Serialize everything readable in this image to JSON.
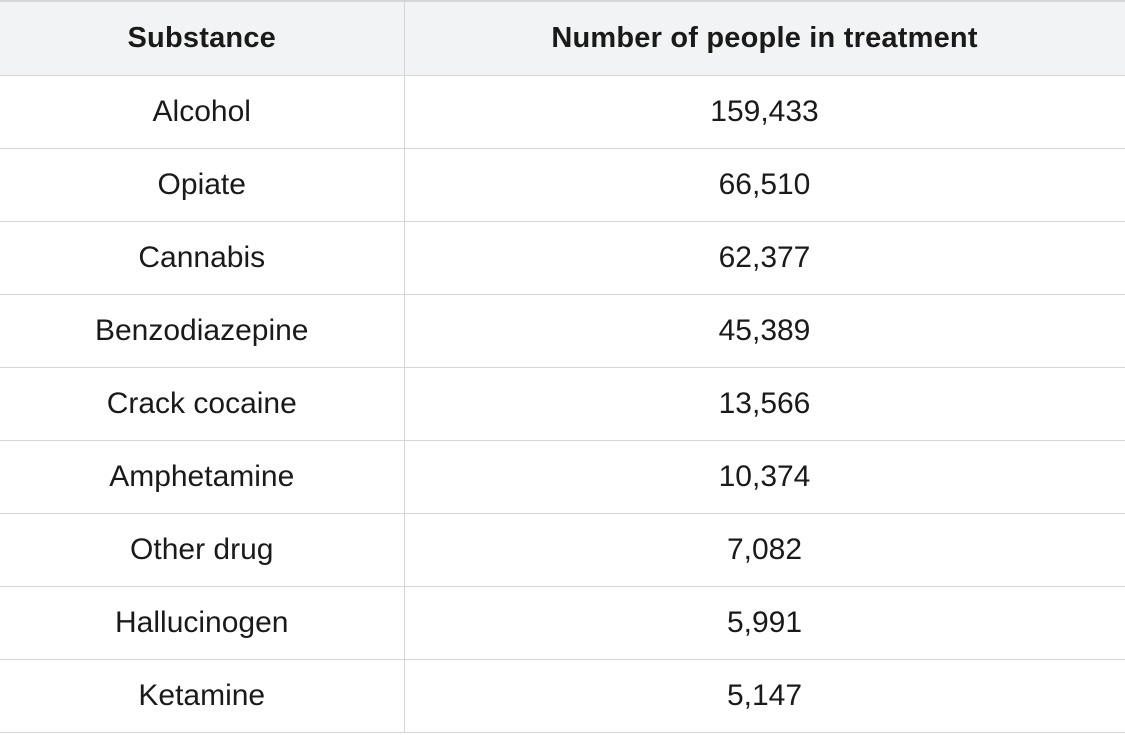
{
  "table": {
    "headers": {
      "substance": "Substance",
      "number": "Number of people in treatment"
    },
    "rows": [
      {
        "substance": "Alcohol",
        "number": "159,433"
      },
      {
        "substance": "Opiate",
        "number": "66,510"
      },
      {
        "substance": "Cannabis",
        "number": "62,377"
      },
      {
        "substance": "Benzodiazepine",
        "number": "45,389"
      },
      {
        "substance": "Crack cocaine",
        "number": "13,566"
      },
      {
        "substance": "Amphetamine",
        "number": "10,374"
      },
      {
        "substance": "Other drug",
        "number": "7,082"
      },
      {
        "substance": "Hallucinogen",
        "number": "5,991"
      },
      {
        "substance": "Ketamine",
        "number": "5,147"
      }
    ]
  },
  "colors": {
    "header_background": "#f2f3f4",
    "border": "#d4d6d8",
    "text": "#1a1a1a"
  }
}
